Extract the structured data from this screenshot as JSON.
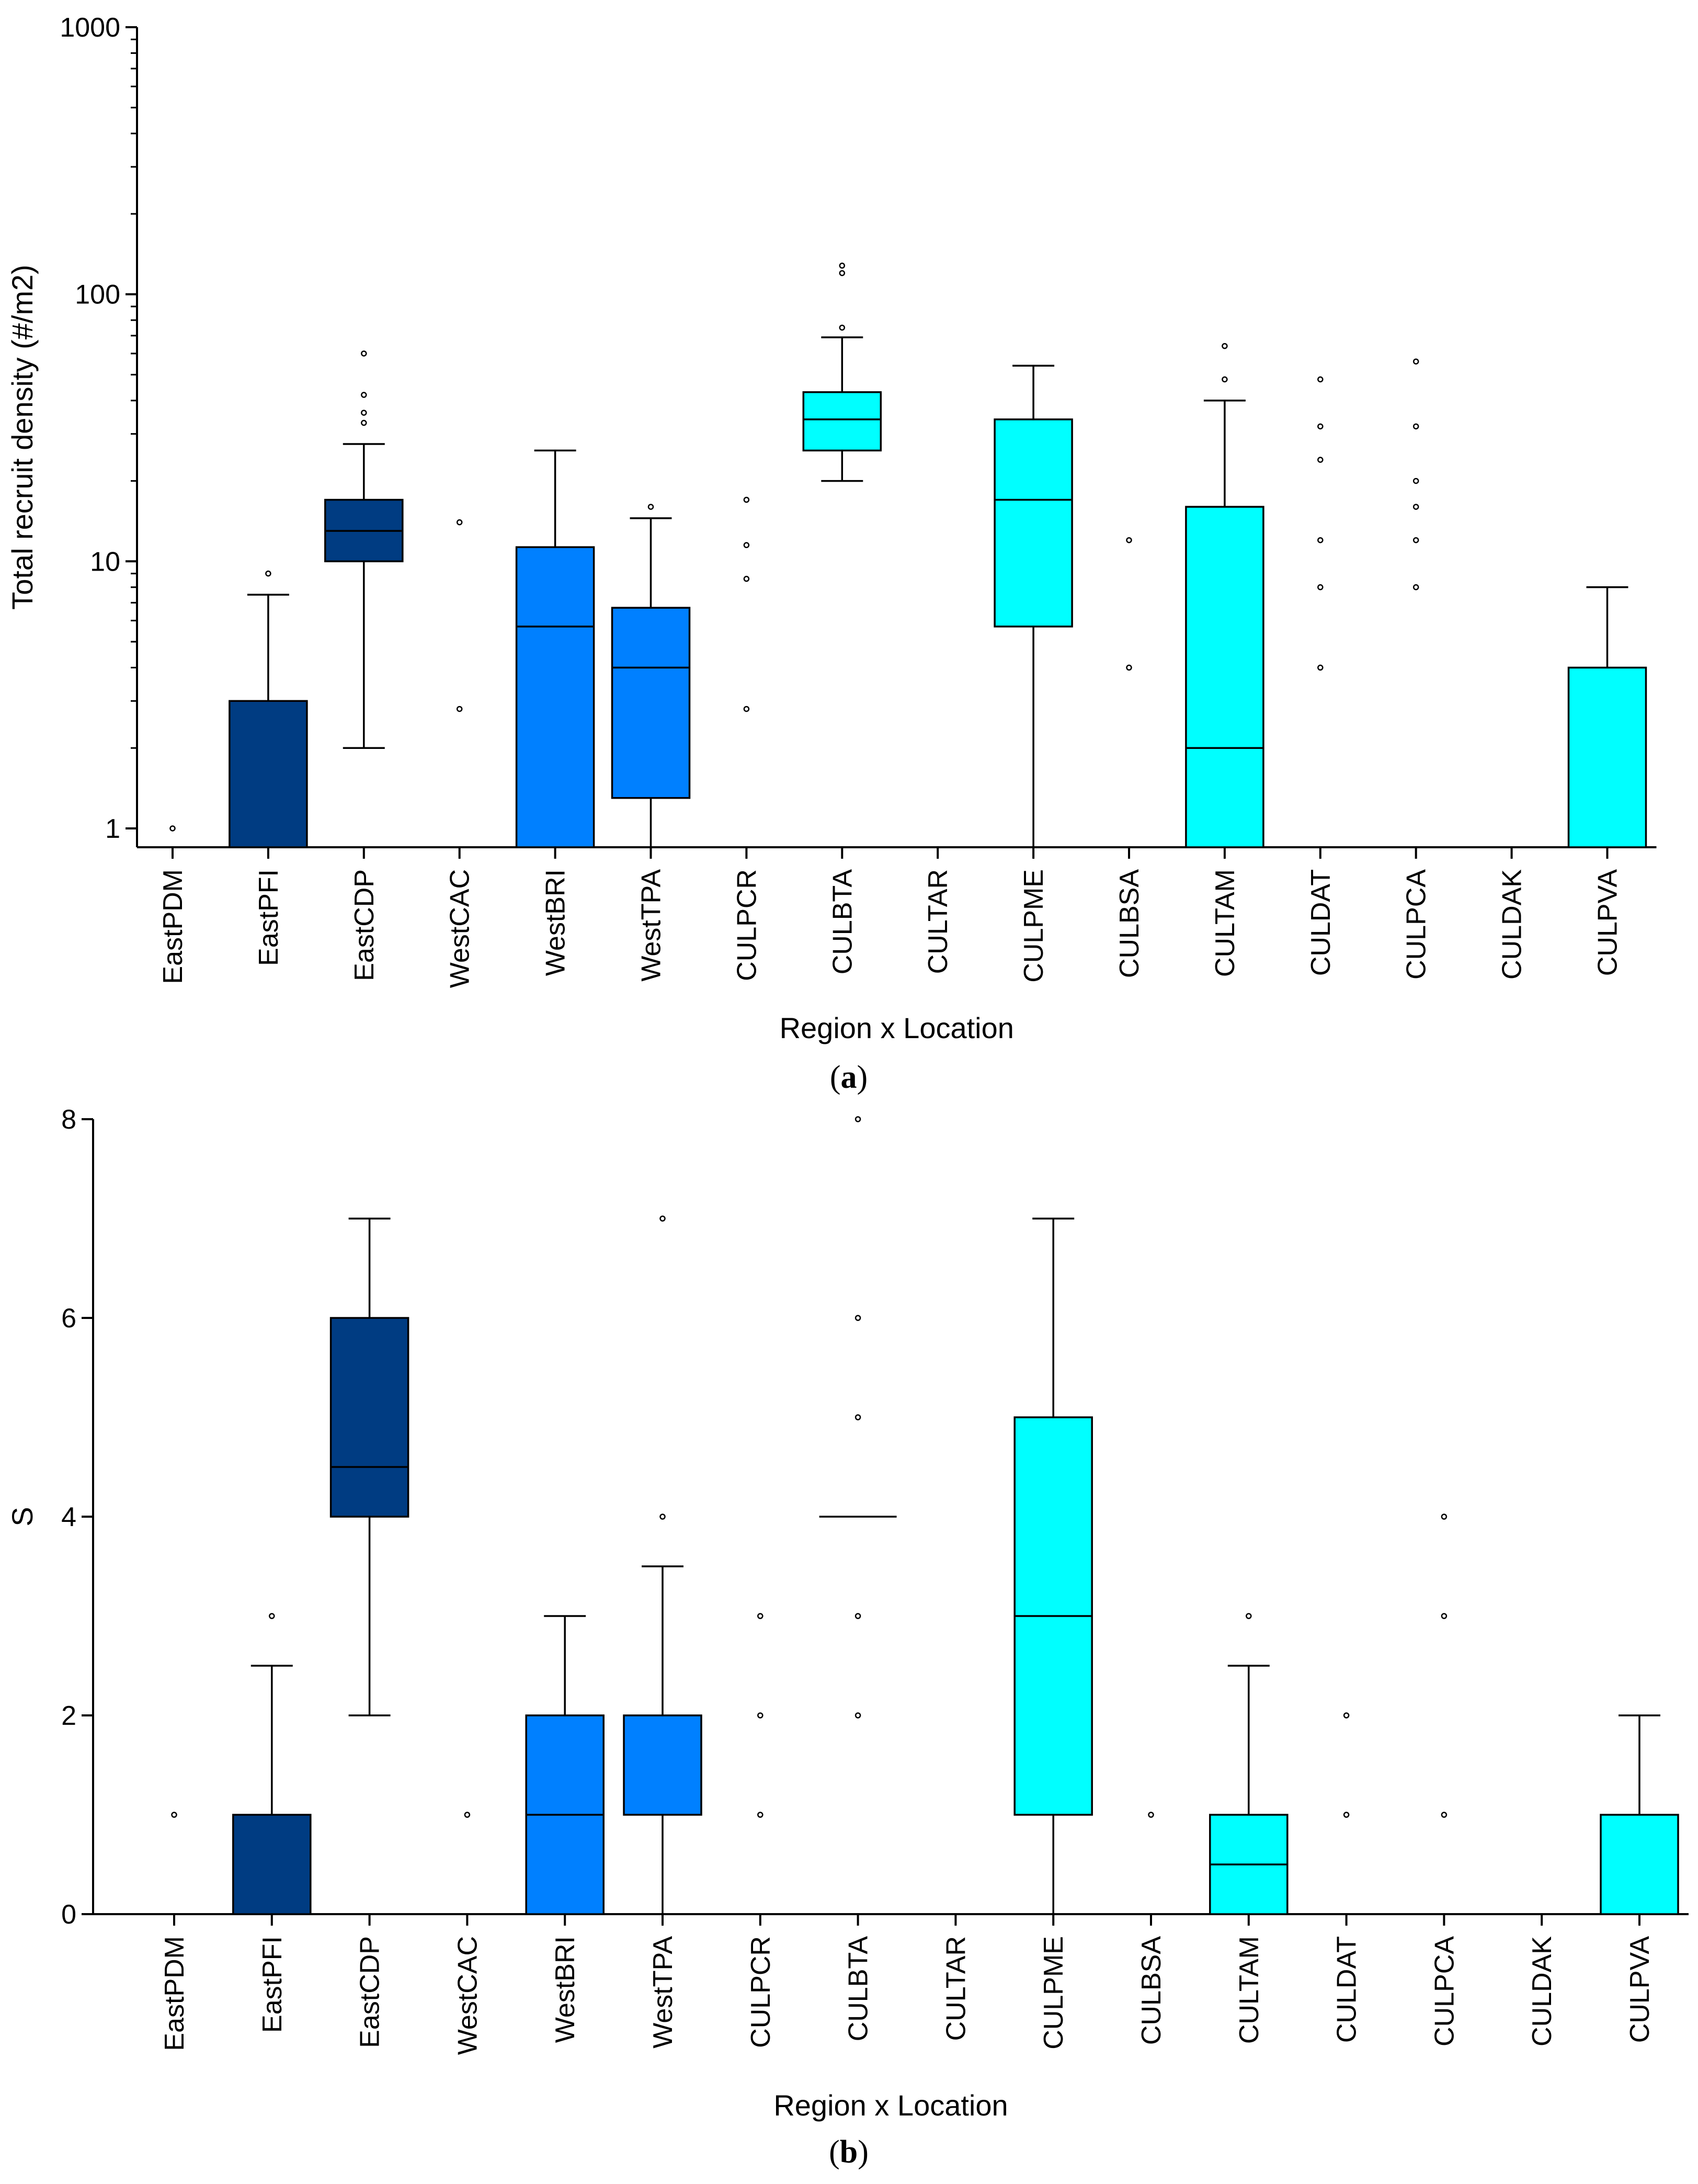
{
  "colors": {
    "east": "#003c82",
    "west": "#0080ff",
    "cul": "#00ffff",
    "stroke": "#000000"
  },
  "chart_data": [
    {
      "type": "box",
      "panel_label_open": "(",
      "panel_label_letter": "a",
      "panel_label_close": ")",
      "title": "",
      "xlabel": "Region x Location",
      "ylabel": "Total recruit density (#/m2)",
      "yscale": "log",
      "ylim": [
        0.85,
        1000
      ],
      "yticks": [
        1,
        10,
        100,
        1000
      ],
      "ytick_labels": [
        "1",
        "10",
        "100",
        "1000"
      ],
      "categories": [
        "EastPDM",
        "EastPFI",
        "EastCDP",
        "WestCAC",
        "WestBRI",
        "WestTPA",
        "CULPCR",
        "CULBTA",
        "CULTAR",
        "CULPME",
        "CULBSA",
        "CULTAM",
        "CULDAT",
        "CULPCA",
        "CULDAK",
        "CULPVA"
      ],
      "groups": [
        "east",
        "east",
        "east",
        "west",
        "west",
        "west",
        "cul",
        "cul",
        "cul",
        "cul",
        "cul",
        "cul",
        "cul",
        "cul",
        "cul",
        "cul"
      ],
      "boxes": [
        {
          "q1": null,
          "median": null,
          "q3": null,
          "whisker_low": null,
          "whisker_high": null,
          "outliers": [
            1
          ]
        },
        {
          "q1": 0.85,
          "median": null,
          "q3": 3,
          "whisker_low": null,
          "whisker_high": 7.5,
          "outliers": [
            9
          ]
        },
        {
          "q1": 10,
          "median": 13,
          "q3": 17,
          "whisker_low": 2,
          "whisker_high": 27.5,
          "outliers": [
            33,
            36,
            42,
            60
          ]
        },
        {
          "q1": null,
          "median": null,
          "q3": null,
          "whisker_low": null,
          "whisker_high": null,
          "outliers": [
            2.8,
            14
          ]
        },
        {
          "q1": 0.85,
          "median": 5.7,
          "q3": 11.3,
          "whisker_low": null,
          "whisker_high": 26,
          "outliers": []
        },
        {
          "q1": 1.3,
          "median": 4,
          "q3": 6.7,
          "whisker_low": 0.85,
          "whisker_high": 14.5,
          "outliers": [
            16
          ]
        },
        {
          "q1": null,
          "median": null,
          "q3": null,
          "whisker_low": null,
          "whisker_high": null,
          "outliers": [
            2.8,
            8.6,
            11.5,
            17
          ]
        },
        {
          "q1": 26,
          "median": 34,
          "q3": 43,
          "whisker_low": 20,
          "whisker_high": 69,
          "outliers": [
            75,
            120,
            128
          ]
        },
        {
          "q1": null,
          "median": null,
          "q3": null,
          "whisker_low": null,
          "whisker_high": null,
          "outliers": []
        },
        {
          "q1": 5.7,
          "median": 17,
          "q3": 34,
          "whisker_low": 0.85,
          "whisker_high": 54,
          "outliers": []
        },
        {
          "q1": null,
          "median": null,
          "q3": null,
          "whisker_low": null,
          "whisker_high": null,
          "outliers": [
            4,
            12
          ]
        },
        {
          "q1": 0.85,
          "median": 2,
          "q3": 16,
          "whisker_low": null,
          "whisker_high": 40,
          "outliers": [
            48,
            64
          ]
        },
        {
          "q1": null,
          "median": null,
          "q3": null,
          "whisker_low": null,
          "whisker_high": null,
          "outliers": [
            4,
            8,
            12,
            24,
            32,
            48
          ]
        },
        {
          "q1": null,
          "median": null,
          "q3": null,
          "whisker_low": null,
          "whisker_high": null,
          "outliers": [
            8,
            12,
            16,
            20,
            32,
            56
          ]
        },
        {
          "q1": null,
          "median": null,
          "q3": null,
          "whisker_low": null,
          "whisker_high": null,
          "outliers": []
        },
        {
          "q1": 0.85,
          "median": null,
          "q3": 4,
          "whisker_low": null,
          "whisker_high": 8,
          "outliers": []
        }
      ]
    },
    {
      "type": "box",
      "panel_label_open": "(",
      "panel_label_letter": "b",
      "panel_label_close": ")",
      "title": "",
      "xlabel": "Region x Location",
      "ylabel": "S",
      "yscale": "linear",
      "ylim": [
        0,
        8
      ],
      "yticks": [
        0,
        2,
        4,
        6,
        8
      ],
      "ytick_labels": [
        "0",
        "2",
        "4",
        "6",
        "8"
      ],
      "categories": [
        "EastPDM",
        "EastPFI",
        "EastCDP",
        "WestCAC",
        "WestBRI",
        "WestTPA",
        "CULPCR",
        "CULBTA",
        "CULTAR",
        "CULPME",
        "CULBSA",
        "CULTAM",
        "CULDAT",
        "CULPCA",
        "CULDAK",
        "CULPVA"
      ],
      "groups": [
        "east",
        "east",
        "east",
        "west",
        "west",
        "west",
        "cul",
        "cul",
        "cul",
        "cul",
        "cul",
        "cul",
        "cul",
        "cul",
        "cul",
        "cul"
      ],
      "boxes": [
        {
          "q1": 0,
          "median": 0,
          "q3": 0,
          "whisker_low": null,
          "whisker_high": null,
          "outliers": [
            1
          ]
        },
        {
          "q1": 0,
          "median": null,
          "q3": 1,
          "whisker_low": null,
          "whisker_high": 2.5,
          "outliers": [
            3
          ]
        },
        {
          "q1": 4,
          "median": 4.5,
          "q3": 6,
          "whisker_low": 2,
          "whisker_high": 7,
          "outliers": []
        },
        {
          "q1": 0,
          "median": 0,
          "q3": 0,
          "whisker_low": null,
          "whisker_high": null,
          "outliers": [
            1
          ]
        },
        {
          "q1": 0,
          "median": 1,
          "q3": 2,
          "whisker_low": null,
          "whisker_high": 3,
          "outliers": []
        },
        {
          "q1": 1,
          "median": null,
          "q3": 2,
          "whisker_low": 0,
          "whisker_high": 3.5,
          "outliers": [
            4,
            7
          ]
        },
        {
          "q1": 0,
          "median": 0,
          "q3": 0,
          "whisker_low": null,
          "whisker_high": null,
          "outliers": [
            1,
            2,
            3
          ]
        },
        {
          "q1": 4,
          "median": 4,
          "q3": 4,
          "whisker_low": null,
          "whisker_high": null,
          "outliers": [
            2,
            3,
            5,
            6,
            8
          ]
        },
        {
          "q1": 0,
          "median": 0,
          "q3": 0,
          "whisker_low": null,
          "whisker_high": null,
          "outliers": []
        },
        {
          "q1": 1,
          "median": 3,
          "q3": 5,
          "whisker_low": 0,
          "whisker_high": 7,
          "outliers": []
        },
        {
          "q1": 0,
          "median": 0,
          "q3": 0,
          "whisker_low": null,
          "whisker_high": null,
          "outliers": [
            1
          ]
        },
        {
          "q1": 0,
          "median": 0.5,
          "q3": 1,
          "whisker_low": null,
          "whisker_high": 2.5,
          "outliers": [
            3
          ]
        },
        {
          "q1": 0,
          "median": 0,
          "q3": 0,
          "whisker_low": null,
          "whisker_high": null,
          "outliers": [
            1,
            2
          ]
        },
        {
          "q1": 0,
          "median": 0,
          "q3": 0,
          "whisker_low": null,
          "whisker_high": null,
          "outliers": [
            1,
            3,
            4
          ]
        },
        {
          "q1": 0,
          "median": 0,
          "q3": 0,
          "whisker_low": null,
          "whisker_high": null,
          "outliers": []
        },
        {
          "q1": 0,
          "median": null,
          "q3": 1,
          "whisker_low": null,
          "whisker_high": 2,
          "outliers": []
        }
      ]
    }
  ]
}
